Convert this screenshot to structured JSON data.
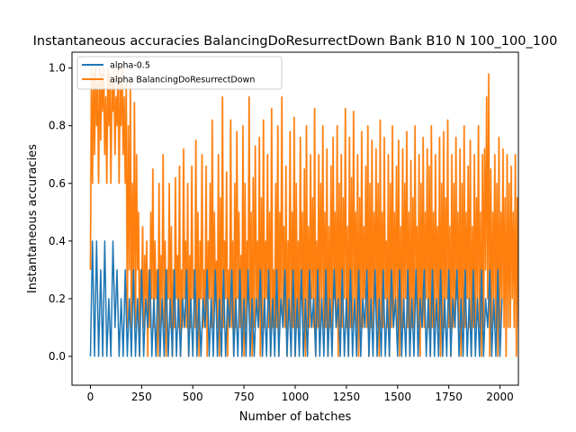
{
  "chart_data": {
    "type": "line",
    "title": "Instantaneous accuracies BalancingDoResurrectDown Bank B10 N 100_100_100",
    "xlabel": "Number of batches",
    "ylabel": "Instantaneous accuracies",
    "xlim": [
      -90,
      2090
    ],
    "ylim": [
      -0.1,
      1.055
    ],
    "xticks": [
      0,
      250,
      500,
      750,
      1000,
      1250,
      1500,
      1750,
      2000
    ],
    "yticks": [
      0.0,
      0.2,
      0.4,
      0.6,
      0.8,
      1.0
    ],
    "xtick_labels": [
      "0",
      "250",
      "500",
      "750",
      "1000",
      "1250",
      "1500",
      "1750",
      "2000"
    ],
    "ytick_labels": [
      "0.0",
      "0.2",
      "0.4",
      "0.6",
      "0.8",
      "1.0"
    ],
    "legend_position": "top-left",
    "grid": false,
    "series": [
      {
        "name": "alpha-0.5",
        "color": "#1f77b4",
        "x_start": 0,
        "x_step": 10,
        "values": [
          0.0,
          0.4,
          0.0,
          0.4,
          0.0,
          0.3,
          0.0,
          0.4,
          0.0,
          0.2,
          0.0,
          0.4,
          0.1,
          0.3,
          0.0,
          0.2,
          0.0,
          0.3,
          0.0,
          0.2,
          0.0,
          0.3,
          0.0,
          0.2,
          0.0,
          0.3,
          0.0,
          0.2,
          0.1,
          0.3,
          0.0,
          0.2,
          0.0,
          0.3,
          0.0,
          0.2,
          0.0,
          0.3,
          0.0,
          0.2,
          0.0,
          0.3,
          0.0,
          0.2,
          0.0,
          0.2,
          0.1,
          0.3,
          0.0,
          0.2,
          0.0,
          0.3,
          0.0,
          0.2,
          0.0,
          0.2,
          0.1,
          0.3,
          0.0,
          0.2,
          0.0,
          0.3,
          0.0,
          0.2,
          0.0,
          0.3,
          0.0,
          0.2,
          0.1,
          0.3,
          0.0,
          0.2,
          0.0,
          0.3,
          0.0,
          0.2,
          0.0,
          0.3,
          0.0,
          0.2,
          0.0,
          0.2,
          0.1,
          0.3,
          0.0,
          0.2,
          0.0,
          0.3,
          0.0,
          0.2,
          0.0,
          0.3,
          0.0,
          0.2,
          0.1,
          0.3,
          0.0,
          0.2,
          0.0,
          0.3,
          0.0,
          0.2,
          0.0,
          0.3,
          0.0,
          0.2,
          0.0,
          0.3,
          0.1,
          0.2,
          0.0,
          0.3,
          0.0,
          0.2,
          0.0,
          0.3,
          0.0,
          0.2,
          0.0,
          0.3,
          0.1,
          0.2,
          0.0,
          0.3,
          0.0,
          0.2,
          0.0,
          0.3,
          0.0,
          0.2,
          0.0,
          0.3,
          0.0,
          0.2,
          0.1,
          0.3,
          0.0,
          0.2,
          0.0,
          0.3,
          0.0,
          0.2,
          0.0,
          0.3,
          0.0,
          0.2,
          0.0,
          0.3,
          0.1,
          0.2,
          0.0,
          0.3,
          0.0,
          0.2,
          0.0,
          0.3,
          0.0,
          0.2,
          0.0,
          0.3,
          0.0,
          0.2,
          0.1,
          0.3,
          0.0,
          0.2,
          0.0,
          0.3,
          0.0,
          0.2,
          0.0,
          0.3,
          0.0,
          0.2,
          0.0,
          0.3,
          0.0,
          0.2,
          0.1,
          0.3,
          0.0,
          0.2,
          0.0,
          0.3,
          0.0,
          0.2,
          0.0,
          0.3,
          0.0,
          0.2,
          0.0,
          0.3,
          0.0,
          0.2,
          0.1,
          0.3,
          0.0,
          0.2,
          0.0,
          0.3,
          0.0,
          0.2
        ]
      },
      {
        "name": "alpha BalancingDoResurrectDown",
        "color": "#ff7f0e",
        "x_start": 0,
        "x_step": 5,
        "values": [
          0.3,
          1.0,
          0.6,
          0.98,
          0.7,
          1.0,
          0.8,
          0.95,
          0.6,
          1.0,
          0.75,
          0.98,
          0.85,
          1.0,
          0.7,
          0.9,
          0.6,
          1.0,
          0.8,
          0.98,
          0.6,
          0.95,
          0.85,
          1.0,
          0.7,
          0.9,
          0.8,
          1.0,
          0.6,
          0.95,
          0.8,
          1.0,
          0.7,
          0.9,
          0.6,
          0.95,
          0.1,
          0.8,
          0.3,
          0.95,
          0.1,
          0.6,
          0.2,
          0.88,
          0.1,
          0.7,
          0.3,
          0.5,
          0.0,
          0.3,
          0.2,
          0.45,
          0.1,
          0.35,
          0.2,
          0.4,
          0.0,
          0.3,
          0.1,
          0.5,
          0.2,
          0.65,
          0.1,
          0.4,
          0.2,
          0.3,
          0.0,
          0.6,
          0.1,
          0.35,
          0.2,
          0.7,
          0.1,
          0.4,
          0.0,
          0.3,
          0.2,
          0.6,
          0.1,
          0.45,
          0.0,
          0.3,
          0.1,
          0.62,
          0.2,
          0.35,
          0.1,
          0.66,
          0.0,
          0.3,
          0.1,
          0.72,
          0.2,
          0.4,
          0.1,
          0.6,
          0.0,
          0.35,
          0.1,
          0.66,
          0.2,
          0.3,
          0.1,
          0.75,
          0.1,
          0.5,
          0.0,
          0.4,
          0.2,
          0.7,
          0.1,
          0.3,
          0.1,
          0.66,
          0.0,
          0.4,
          0.2,
          0.6,
          0.1,
          0.82,
          0.1,
          0.5,
          0.2,
          0.33,
          0.1,
          0.7,
          0.0,
          0.55,
          0.1,
          0.9,
          0.1,
          0.4,
          0.2,
          0.64,
          0.0,
          0.3,
          0.1,
          0.82,
          0.1,
          0.4,
          0.0,
          0.6,
          0.1,
          0.78,
          0.2,
          0.5,
          0.1,
          0.35,
          0.1,
          0.8,
          0.0,
          0.6,
          0.1,
          0.4,
          0.2,
          0.9,
          0.1,
          0.5,
          0.0,
          0.62,
          0.1,
          0.73,
          0.2,
          0.4,
          0.1,
          0.76,
          0.0,
          0.55,
          0.1,
          0.82,
          0.1,
          0.4,
          0.2,
          0.7,
          0.1,
          0.5,
          0.0,
          0.86,
          0.1,
          0.3,
          0.1,
          0.6,
          0.1,
          0.8,
          0.0,
          0.5,
          0.2,
          0.9,
          0.1,
          0.45,
          0.1,
          0.66,
          0.0,
          0.4,
          0.2,
          0.78,
          0.1,
          0.5,
          0.1,
          0.83,
          0.0,
          0.6,
          0.1,
          0.4,
          0.1,
          0.76,
          0.2,
          0.5,
          0.1,
          0.65,
          0.0,
          0.8,
          0.1,
          0.45,
          0.1,
          0.7,
          0.2,
          0.55,
          0.1,
          0.86,
          0.0,
          0.4,
          0.1,
          0.7,
          0.1,
          0.6,
          0.2,
          0.8,
          0.1,
          0.5,
          0.1,
          0.72,
          0.0,
          0.45,
          0.1,
          0.66,
          0.1,
          0.76,
          0.2,
          0.5,
          0.1,
          0.8,
          0.0,
          0.6,
          0.1,
          0.7,
          0.1,
          0.55,
          0.2,
          0.86,
          0.1,
          0.45,
          0.0,
          0.76,
          0.1,
          0.62,
          0.1,
          0.85,
          0.2,
          0.5,
          0.1,
          0.7,
          0.0,
          0.55,
          0.1,
          0.78,
          0.1,
          0.45,
          0.2,
          0.66,
          0.1,
          0.8,
          0.0,
          0.6,
          0.1,
          0.75,
          0.1,
          0.5,
          0.2,
          0.72,
          0.1,
          0.6,
          0.0,
          0.82,
          0.1,
          0.5,
          0.1,
          0.76,
          0.2,
          0.4,
          0.1,
          0.7,
          0.0,
          0.6,
          0.1,
          0.8,
          0.1,
          0.5,
          0.2,
          0.66,
          0.1,
          0.75,
          0.0,
          0.45,
          0.1,
          0.72,
          0.1,
          0.6,
          0.2,
          0.78,
          0.1,
          0.5,
          0.0,
          0.68,
          0.1,
          0.55,
          0.1,
          0.8,
          0.2,
          0.45,
          0.1,
          0.7,
          0.0,
          0.6,
          0.1,
          0.76,
          0.1,
          0.5,
          0.2,
          0.72,
          0.1,
          0.66,
          0.0,
          0.8,
          0.1,
          0.5,
          0.1,
          0.7,
          0.2,
          0.45,
          0.1,
          0.76,
          0.0,
          0.6,
          0.1,
          0.78,
          0.1,
          0.55,
          0.2,
          0.82,
          0.1,
          0.45,
          0.0,
          0.7,
          0.1,
          0.6,
          0.1,
          0.76,
          0.2,
          0.5,
          0.1,
          0.72,
          0.0,
          0.6,
          0.1,
          0.8,
          0.1,
          0.5,
          0.2,
          0.66,
          0.1,
          0.75,
          0.0,
          0.45,
          0.1,
          0.7,
          0.1,
          0.55,
          0.2,
          0.8,
          0.1,
          0.5,
          0.0,
          0.7,
          0.1,
          0.72,
          0.3,
          0.9,
          0.2,
          0.98,
          0.0,
          0.65,
          0.1,
          0.5,
          0.2,
          0.7,
          0.1,
          0.6,
          0.0,
          0.76,
          0.1,
          0.5,
          0.2,
          0.72,
          0.1,
          0.55,
          0.0,
          0.7,
          0.1,
          0.6,
          0.1,
          0.66,
          0.2,
          0.5,
          0.1,
          0.7,
          0.0,
          0.55,
          0.1,
          0.72,
          0.1,
          0.5,
          0.2,
          0.66,
          0.3,
          0.4
        ]
      }
    ]
  }
}
